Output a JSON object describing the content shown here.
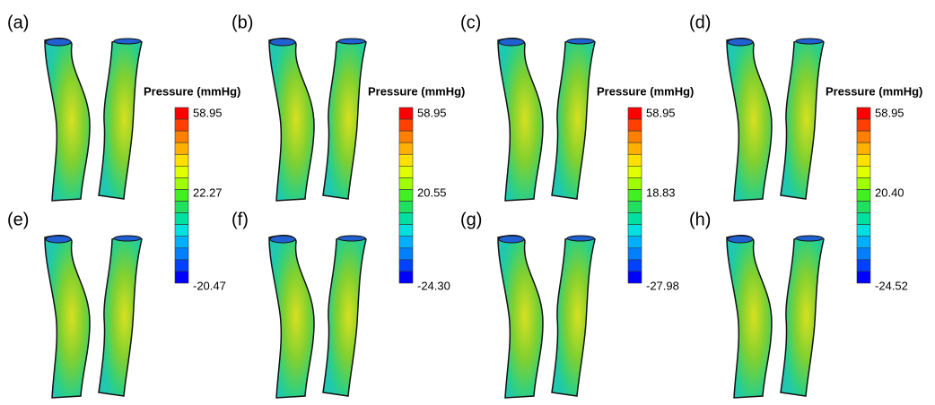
{
  "panels": [
    "(a)",
    "(b)",
    "(c)",
    "(d)",
    "(e)",
    "(f)",
    "(g)",
    "(h)"
  ],
  "colorbars": [
    {
      "title": "Pressure (mmHg)",
      "max": "58.95",
      "mid": "22.27",
      "min": "-20.47"
    },
    {
      "title": "Pressure (mmHg)",
      "max": "58.95",
      "mid": "20.55",
      "min": "-24.30"
    },
    {
      "title": "Pressure (mmHg)",
      "max": "58.95",
      "mid": "18.83",
      "min": "-27.98"
    },
    {
      "title": "Pressure (mmHg)",
      "max": "58.95",
      "mid": "20.40",
      "min": "-24.52"
    }
  ]
}
